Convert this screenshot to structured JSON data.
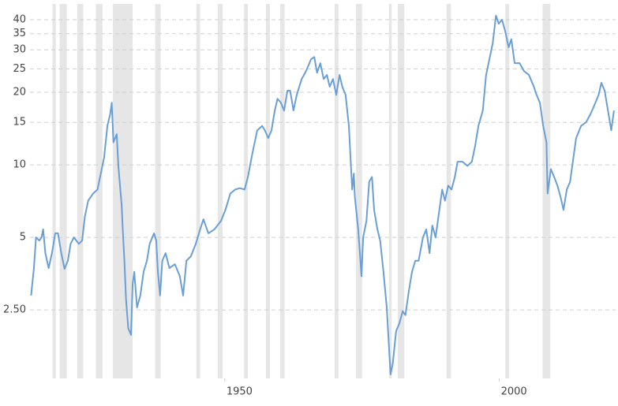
{
  "chart_data": {
    "type": "line",
    "log_scale": true,
    "grid": true,
    "color": "#6a9fd4",
    "band_color": "#e6e6e6",
    "xlim": [
      1914.5,
      2021.2
    ],
    "ylim": [
      1.3,
      46.5
    ],
    "xticks": [
      1950,
      2000
    ],
    "yticks": [
      {
        "value": 2.5,
        "label": "2.50"
      },
      5,
      10,
      15,
      20,
      25,
      30,
      35,
      40
    ],
    "shaded_periods": [
      [
        1918.6,
        1919.2
      ],
      [
        1919.9,
        1921.2
      ],
      [
        1923.1,
        1924.2
      ],
      [
        1926.5,
        1927.7
      ],
      [
        1929.6,
        1933.2
      ],
      [
        1937.3,
        1938.3
      ],
      [
        1944.8,
        1945.5
      ],
      [
        1948.7,
        1949.6
      ],
      [
        1953.5,
        1954.2
      ],
      [
        1957.5,
        1958.2
      ],
      [
        1960.1,
        1960.9
      ],
      [
        1970.0,
        1970.7
      ],
      [
        1973.9,
        1975.0
      ],
      [
        1979.9,
        1980.4
      ],
      [
        1981.5,
        1982.7
      ],
      [
        1990.4,
        1991.2
      ],
      [
        2001.1,
        2001.8
      ],
      [
        2007.9,
        2009.3
      ]
    ],
    "x": [
      1914.7,
      1915.2,
      1915.6,
      1916.2,
      1916.6,
      1916.9,
      1917.3,
      1917.9,
      1918.5,
      1919.1,
      1919.6,
      1920.2,
      1920.8,
      1921.4,
      1921.9,
      1922.5,
      1923.4,
      1924.0,
      1924.5,
      1925.1,
      1926.0,
      1926.8,
      1927.4,
      1928.0,
      1928.6,
      1929.1,
      1929.4,
      1929.7,
      1930.3,
      1930.6,
      1931.2,
      1931.4,
      1931.7,
      1932.0,
      1932.4,
      1932.9,
      1933.2,
      1933.5,
      1934.0,
      1934.6,
      1935.2,
      1935.8,
      1936.3,
      1937.1,
      1937.5,
      1937.8,
      1938.2,
      1938.6,
      1939.2,
      1939.9,
      1940.9,
      1941.8,
      1942.4,
      1943.0,
      1943.8,
      1944.7,
      1945.5,
      1946.1,
      1947.0,
      1948.1,
      1949.3,
      1950.1,
      1951.0,
      1951.9,
      1952.7,
      1953.6,
      1954.2,
      1955.0,
      1955.9,
      1956.8,
      1957.3,
      1957.9,
      1958.5,
      1959.1,
      1959.6,
      1960.2,
      1960.8,
      1961.4,
      1961.9,
      1962.5,
      1963.1,
      1964.0,
      1964.8,
      1965.7,
      1966.3,
      1966.8,
      1967.4,
      1968.0,
      1968.6,
      1969.1,
      1969.7,
      1970.3,
      1970.9,
      1971.4,
      1972.0,
      1972.6,
      1973.2,
      1973.5,
      1973.7,
      1974.3,
      1974.9,
      1975.2,
      1975.8,
      1976.3,
      1976.8,
      1977.2,
      1977.8,
      1978.3,
      1978.9,
      1979.5,
      1979.9,
      1980.2,
      1980.6,
      1981.2,
      1981.8,
      1982.4,
      1982.9,
      1983.5,
      1984.1,
      1984.7,
      1985.3,
      1986.1,
      1986.7,
      1987.3,
      1987.8,
      1988.4,
      1989.0,
      1989.6,
      1990.1,
      1990.7,
      1991.3,
      1991.9,
      1992.4,
      1993.3,
      1994.2,
      1995.0,
      1995.6,
      1996.2,
      1997.0,
      1997.6,
      1998.2,
      1998.8,
      1999.4,
      1999.9,
      2000.5,
      2001.1,
      2001.7,
      2002.2,
      2002.8,
      2003.7,
      2004.5,
      2005.4,
      2006.3,
      2006.8,
      2007.4,
      2008.0,
      2008.6,
      2008.8,
      2009.4,
      2010.0,
      2010.6,
      2011.2,
      2011.7,
      2012.3,
      2012.9,
      2013.5,
      2014.0,
      2014.9,
      2015.8,
      2016.6,
      2017.2,
      2018.1,
      2018.6,
      2019.2,
      2019.8,
      2020.4,
      2020.9
    ],
    "values": [
      2.87,
      3.7,
      5.0,
      4.85,
      5.0,
      5.4,
      4.3,
      3.73,
      4.3,
      5.2,
      5.2,
      4.3,
      3.7,
      4.0,
      4.7,
      5.0,
      4.7,
      4.85,
      6.1,
      7.1,
      7.6,
      7.9,
      9.2,
      10.7,
      14.5,
      16.2,
      18.1,
      12.4,
      13.4,
      9.9,
      6.8,
      5.4,
      4.0,
      2.76,
      2.1,
      1.97,
      3.2,
      3.6,
      2.56,
      2.87,
      3.6,
      4.0,
      4.7,
      5.2,
      4.85,
      3.6,
      2.87,
      4.0,
      4.3,
      3.73,
      3.87,
      3.45,
      2.87,
      4.0,
      4.17,
      4.7,
      5.4,
      5.95,
      5.2,
      5.4,
      5.85,
      6.5,
      7.6,
      7.9,
      8.0,
      7.9,
      8.9,
      11.1,
      13.9,
      14.5,
      13.9,
      12.9,
      13.9,
      16.8,
      18.8,
      18.1,
      16.8,
      20.3,
      20.3,
      16.8,
      19.5,
      22.7,
      24.5,
      27.4,
      28,
      24.1,
      26.4,
      22.7,
      23.6,
      21.1,
      22.7,
      19.5,
      23.6,
      21.1,
      19.5,
      14.5,
      7.9,
      9.2,
      7.3,
      5.4,
      3.45,
      5.0,
      5.85,
      8.5,
      8.9,
      6.5,
      5.4,
      4.85,
      3.6,
      2.56,
      1.76,
      1.35,
      1.5,
      2.04,
      2.2,
      2.47,
      2.38,
      2.97,
      3.6,
      4.0,
      4.0,
      5.0,
      5.4,
      4.3,
      5.6,
      5.0,
      6.3,
      7.9,
      7.1,
      8.2,
      7.9,
      8.9,
      10.3,
      10.3,
      9.9,
      10.3,
      11.98,
      14.5,
      16.8,
      23.6,
      27.4,
      31.9,
      41.6,
      38.5,
      40,
      35.7,
      30.7,
      33.2,
      26.4,
      26.4,
      24.5,
      23.6,
      21.1,
      19.5,
      18.1,
      14.5,
      12.4,
      7.6,
      9.6,
      8.9,
      8.2,
      7.3,
      6.5,
      7.9,
      8.5,
      10.7,
      12.9,
      14.5,
      15.0,
      16.2,
      17.4,
      19.5,
      21.9,
      20.3,
      16.8,
      13.9,
      16.8
    ]
  }
}
